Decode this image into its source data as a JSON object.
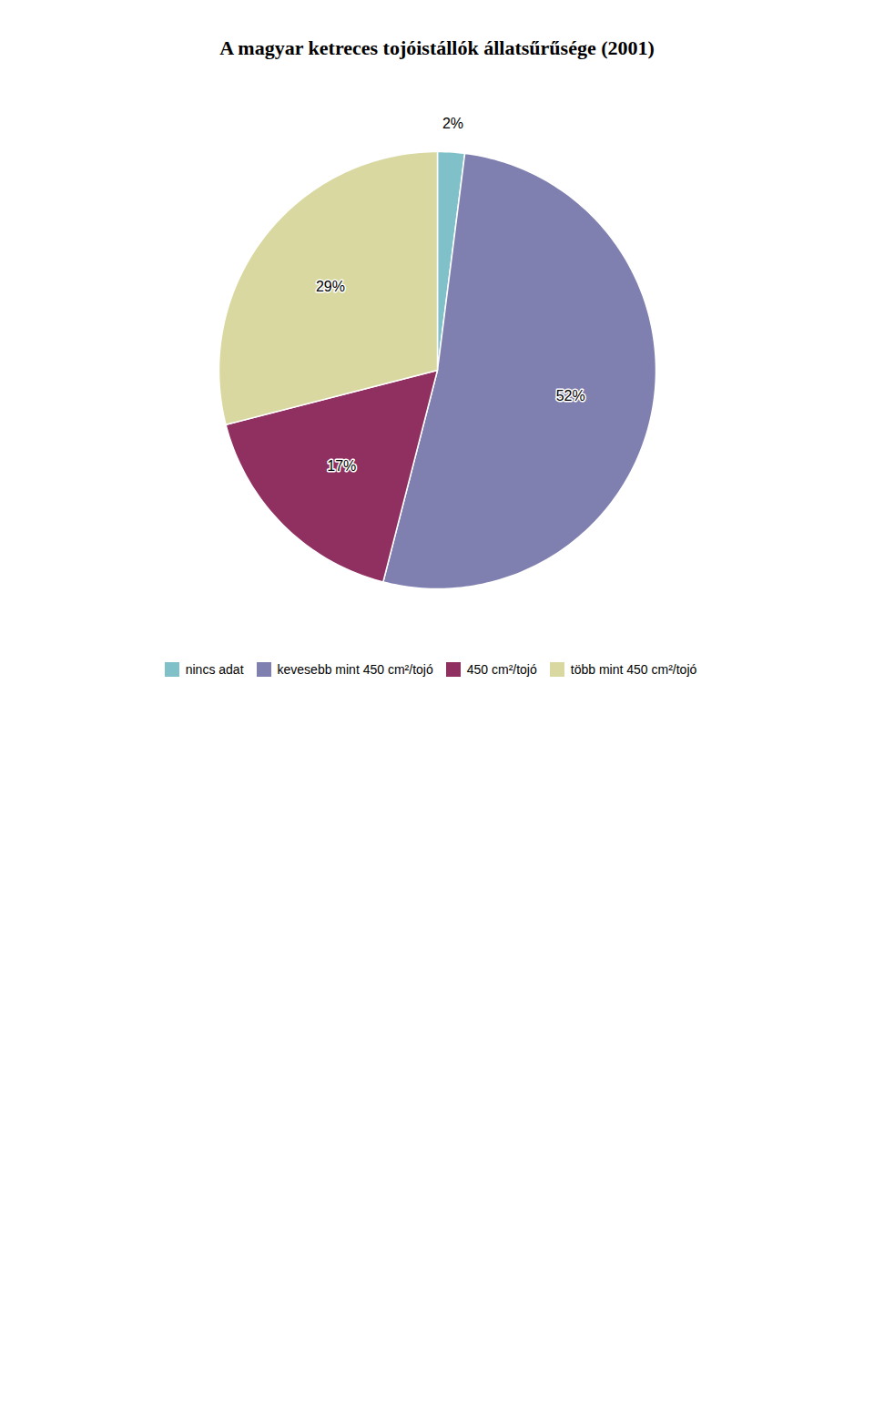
{
  "chart_data": {
    "type": "pie",
    "title": "A magyar ketreces tojóistállók állatsűrűsége (2001)",
    "categories": [
      "nincs adat",
      "kevesebb mint 450 cm²/tojó",
      "450 cm²/tojó",
      "több mint 450 cm²/tojó"
    ],
    "values": [
      2,
      52,
      17,
      29
    ],
    "value_labels": [
      "2%",
      "52%",
      "17%",
      "29%"
    ],
    "colors": [
      "#80C0C8",
      "#8080B0",
      "#903060",
      "#D8D8A0"
    ],
    "data_labels": true,
    "legend": "bottom"
  }
}
